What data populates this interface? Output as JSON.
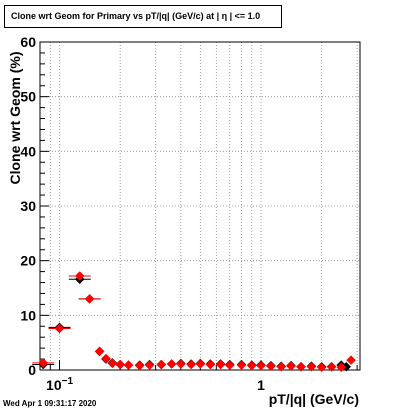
{
  "title": "Clone wrt Geom for Primary vs pT/|q| (GeV/c) at |  η | <= 1.0",
  "timestamp": "Wed Apr  1 09:31:17 2020",
  "chart_data": {
    "type": "scatter",
    "title": "Clone wrt Geom for Primary vs pT/|q| (GeV/c) at |  η | <= 1.0",
    "xlabel": "pT/|q| (GeV/c)",
    "ylabel": "Clone wrt Geom (%)",
    "xscale": "log",
    "xlim": [
      0.08,
      3.1
    ],
    "ylim": [
      0,
      60
    ],
    "x_tick_labels": [
      {
        "value": 0.1,
        "label": "10",
        "exponent": "−1"
      },
      {
        "value": 1,
        "label": "1"
      }
    ],
    "y_tick_labels": [
      "0",
      "10",
      "20",
      "30",
      "40",
      "50",
      "60"
    ],
    "grid": true,
    "legend": "none",
    "series": [
      {
        "color": "#000000",
        "points": [
          [
            0.083,
            1.0
          ],
          [
            0.1,
            7.8
          ],
          [
            0.126,
            16.6
          ],
          [
            0.141,
            13.0
          ],
          [
            0.158,
            3.4
          ],
          [
            0.17,
            2.0
          ],
          [
            0.183,
            1.3
          ],
          [
            0.2,
            1.0
          ],
          [
            0.22,
            0.9
          ],
          [
            0.25,
            0.9
          ],
          [
            0.28,
            1.0
          ],
          [
            0.32,
            1.0
          ],
          [
            0.36,
            1.1
          ],
          [
            0.4,
            1.2
          ],
          [
            0.45,
            1.1
          ],
          [
            0.5,
            1.2
          ],
          [
            0.56,
            1.1
          ],
          [
            0.63,
            1.1
          ],
          [
            0.7,
            1.0
          ],
          [
            0.8,
            1.0
          ],
          [
            0.9,
            0.9
          ],
          [
            1.0,
            0.9
          ],
          [
            1.12,
            0.8
          ],
          [
            1.26,
            0.7
          ],
          [
            1.41,
            0.8
          ],
          [
            1.58,
            0.6
          ],
          [
            1.78,
            0.7
          ],
          [
            2.0,
            0.6
          ],
          [
            2.24,
            0.6
          ],
          [
            2.5,
            0.9
          ],
          [
            2.65,
            0.6
          ]
        ]
      },
      {
        "color": "#ff0000",
        "points": [
          [
            0.083,
            1.3
          ],
          [
            0.1,
            7.6
          ],
          [
            0.126,
            17.2
          ],
          [
            0.141,
            13.0
          ],
          [
            0.158,
            3.4
          ],
          [
            0.17,
            2.1
          ],
          [
            0.183,
            1.2
          ],
          [
            0.2,
            1.0
          ],
          [
            0.22,
            0.9
          ],
          [
            0.25,
            0.8
          ],
          [
            0.28,
            0.9
          ],
          [
            0.32,
            1.0
          ],
          [
            0.36,
            1.1
          ],
          [
            0.4,
            1.1
          ],
          [
            0.45,
            1.0
          ],
          [
            0.5,
            1.1
          ],
          [
            0.56,
            1.0
          ],
          [
            0.63,
            1.0
          ],
          [
            0.7,
            0.9
          ],
          [
            0.8,
            0.9
          ],
          [
            0.9,
            0.8
          ],
          [
            1.0,
            0.8
          ],
          [
            1.12,
            0.7
          ],
          [
            1.26,
            0.6
          ],
          [
            1.41,
            0.7
          ],
          [
            1.58,
            0.6
          ],
          [
            1.78,
            0.6
          ],
          [
            2.0,
            0.5
          ],
          [
            2.24,
            0.6
          ],
          [
            2.5,
            0.5
          ],
          [
            2.8,
            1.8
          ]
        ]
      }
    ]
  }
}
